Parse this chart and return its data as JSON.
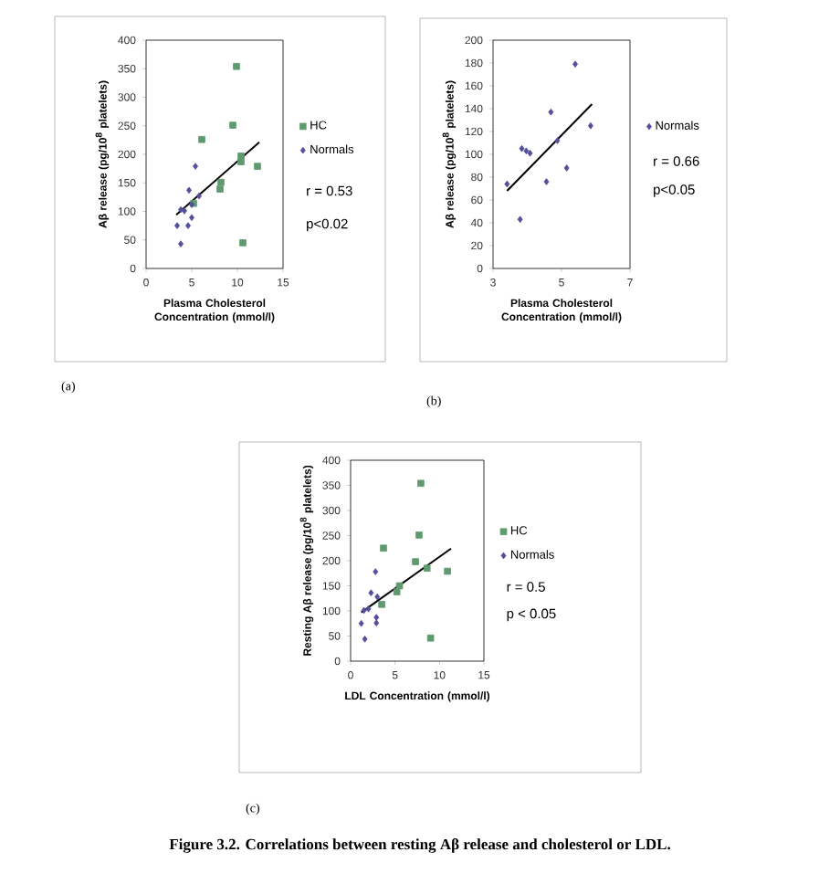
{
  "chart_data": [
    {
      "type": "scatter",
      "xlabel": "Plasma Cholesterol Concentration (mmol/l)",
      "ylabel": "Aβ release (pg/10$^{8}$ platelets)",
      "xlim": [
        0,
        15
      ],
      "ylim": [
        0,
        400
      ],
      "xticks": [
        0,
        5,
        10,
        15
      ],
      "yticks": [
        0,
        50,
        100,
        150,
        200,
        250,
        300,
        350,
        400
      ],
      "legend": "right",
      "series": [
        {
          "name": "HC",
          "color": "#5f9a6e",
          "marker": "square",
          "x": [
            9.9,
            9.5,
            6.1,
            10.4,
            10.4,
            12.2,
            8.2,
            8.1,
            5.2,
            10.6
          ],
          "values": [
            354,
            251,
            226,
            197,
            187,
            179,
            151,
            139,
            114,
            45
          ]
        },
        {
          "name": "Normals",
          "color": "#544f9a",
          "marker": "diamond",
          "x": [
            3.4,
            3.8,
            3.8,
            4.2,
            4.6,
            5.4,
            4.7,
            5.0,
            5.0,
            5.8
          ],
          "values": [
            75,
            43,
            103,
            101,
            75,
            179,
            137,
            112,
            89,
            127
          ]
        },
        {
          "type": "line",
          "color": "#000000",
          "x": [
            3.3,
            12.4
          ],
          "values": [
            94,
            221
          ]
        }
      ],
      "annotations": [
        "r = 0.53",
        "p<0.02",
        "(a)"
      ]
    },
    {
      "type": "scatter",
      "xlabel": "Plasma Cholesterol Concentration (mmol/l)",
      "ylabel": "Aβ release (pg/10$^{8}$ platelets)",
      "xlim": [
        3,
        7
      ],
      "ylim": [
        0,
        200
      ],
      "xticks": [
        3,
        5,
        7
      ],
      "yticks": [
        0,
        20,
        40,
        60,
        80,
        100,
        120,
        140,
        160,
        180,
        200
      ],
      "legend": "right",
      "series": [
        {
          "name": "Normals",
          "color": "#544f9a",
          "marker": "diamond",
          "x": [
            3.41,
            3.79,
            3.84,
            3.97,
            4.08,
            4.56,
            4.69,
            4.88,
            5.15,
            5.4,
            5.85
          ],
          "values": [
            74,
            43,
            105,
            103,
            101,
            76,
            137,
            112,
            88,
            179,
            125
          ]
        },
        {
          "type": "line",
          "color": "#000000",
          "x": [
            3.41,
            5.89
          ],
          "values": [
            68,
            144
          ]
        }
      ],
      "annotations": [
        "r = 0.66",
        "p<0.05",
        "(b)"
      ]
    },
    {
      "type": "scatter",
      "xlabel": "LDL Concentration (mmol/l)",
      "ylabel": "Resting Aβ release (pg/10$^{8}$ platelets)",
      "xlim": [
        0,
        15
      ],
      "ylim": [
        0,
        400
      ],
      "xticks": [
        0,
        5,
        10,
        15
      ],
      "yticks": [
        0,
        50,
        100,
        150,
        200,
        250,
        300,
        350,
        400
      ],
      "legend": "right",
      "series": [
        {
          "name": "HC",
          "color": "#5f9a6e",
          "marker": "square",
          "x": [
            7.9,
            7.7,
            3.7,
            7.3,
            8.6,
            10.9,
            5.5,
            5.2,
            3.5,
            9.0
          ],
          "values": [
            354,
            251,
            225,
            198,
            185,
            179,
            150,
            138,
            113,
            46
          ]
        },
        {
          "name": "Normals",
          "color": "#544f9a",
          "marker": "diamond",
          "x": [
            2.8,
            2.3,
            3.0,
            1.5,
            2.0,
            2.9,
            2.9,
            1.2,
            1.6
          ],
          "values": [
            178,
            136,
            128,
            101,
            104,
            87,
            76,
            75,
            44
          ]
        },
        {
          "type": "line",
          "color": "#000000",
          "x": [
            1.2,
            11.3
          ],
          "values": [
            97,
            224
          ]
        }
      ],
      "annotations": [
        "r = 0.5",
        "p < 0.05",
        "(c)",
        "Figure 3.2. Correlations between resting Aβ release and cholesterol or LDL."
      ]
    }
  ]
}
